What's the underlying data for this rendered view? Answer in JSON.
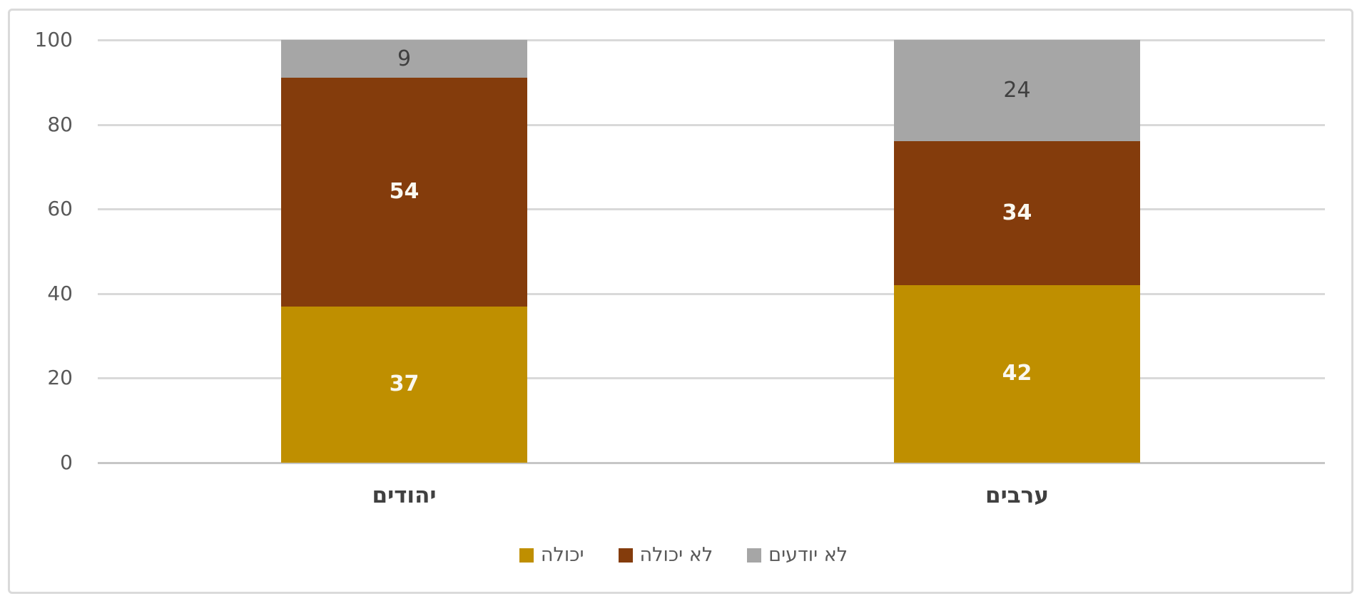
{
  "chart_data": {
    "type": "bar",
    "stacked": true,
    "orientation": "vertical",
    "title": "",
    "xlabel": "",
    "ylabel": "",
    "categories": [
      "יהודים",
      "ערבים"
    ],
    "series": [
      {
        "name": "יכולה",
        "color": "#bf8f00",
        "values": [
          37,
          42
        ],
        "label_style": "bold-light"
      },
      {
        "name": "לא יכולה",
        "color": "#843c0c",
        "values": [
          54,
          34
        ],
        "label_style": "bold-light"
      },
      {
        "name": "לא יודעים",
        "color": "#a6a6a6",
        "values": [
          9,
          24
        ],
        "label_style": "regular-dark"
      }
    ],
    "y_ticks": [
      0,
      20,
      40,
      60,
      80,
      100
    ],
    "ylim": [
      0,
      100
    ],
    "grid": true,
    "gridline_color": "#d9d9d9",
    "axis_label_color": "#595959",
    "category_label_color": "#404040",
    "legend_position": "bottom",
    "legend": [
      {
        "label": "יכולה",
        "color": "#bf8f00"
      },
      {
        "label": "לא יכולה",
        "color": "#843c0c"
      },
      {
        "label": "לא יודעים",
        "color": "#a6a6a6"
      }
    ]
  }
}
